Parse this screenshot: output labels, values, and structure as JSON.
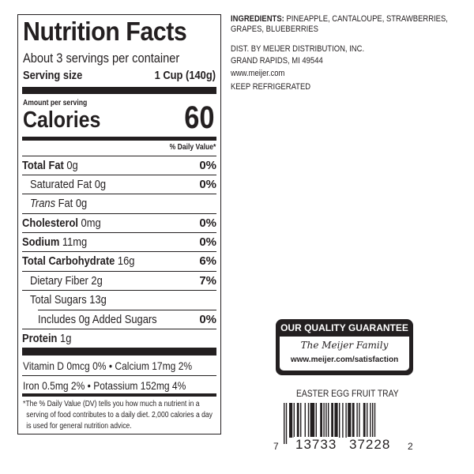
{
  "nutrition": {
    "title": "Nutrition Facts",
    "servings": "About 3 servings per container",
    "serving_size_label": "Serving size",
    "serving_size_value": "1 Cup (140g)",
    "amount_per_serving": "Amount per serving",
    "calories_label": "Calories",
    "calories_value": "60",
    "dv_header": "% Daily Value*",
    "rows": [
      {
        "label": "Total Fat",
        "amount": "0g",
        "dv": "0%"
      },
      {
        "label": "Saturated Fat",
        "amount": "0g",
        "dv": "0%"
      },
      {
        "label": "Trans",
        "amount": "Fat 0g",
        "dv": ""
      },
      {
        "label": "Cholesterol",
        "amount": "0mg",
        "dv": "0%"
      },
      {
        "label": "Sodium",
        "amount": "11mg",
        "dv": "0%"
      },
      {
        "label": "Total Carbohydrate",
        "amount": "16g",
        "dv": "6%"
      },
      {
        "label": "Dietary Fiber",
        "amount": "2g",
        "dv": "7%"
      },
      {
        "label": "Total Sugars",
        "amount": "13g",
        "dv": ""
      },
      {
        "label": "Includes 0g Added Sugars",
        "amount": "",
        "dv": "0%"
      },
      {
        "label": "Protein",
        "amount": "1g",
        "dv": ""
      }
    ],
    "vitamins_line1": "Vitamin D 0mcg 0%  •  Calcium 17mg 2%",
    "vitamins_line2": "Iron 0.5mg 2%  •  Potassium 152mg 4%",
    "footnote": "*The % Daily Value (DV) tells you how much a nutrient in a serving of food contributes to a daily diet. 2,000 calories a day is used for general nutrition advice."
  },
  "info": {
    "ingredients_label": "INGREDIENTS:",
    "ingredients": "PINEAPPLE, CANTALOUPE, STRAWBERRIES, GRAPES, BLUEBERRIES",
    "dist_line1": "DIST. BY MEIJER DISTRIBUTION, INC.",
    "dist_line2": "GRAND RAPIDS, MI 49544",
    "website": "www.meijer.com",
    "storage": "KEEP REFRIGERATED"
  },
  "guarantee": {
    "heading": "OUR QUALITY GUARANTEE",
    "signature": "The Meijer Family",
    "url": "www.meijer.com/satisfaction"
  },
  "product_name": "EASTER EGG FRUIT TRAY",
  "barcode": {
    "first": "7",
    "left": "13733",
    "right": "37228",
    "last": "2"
  }
}
